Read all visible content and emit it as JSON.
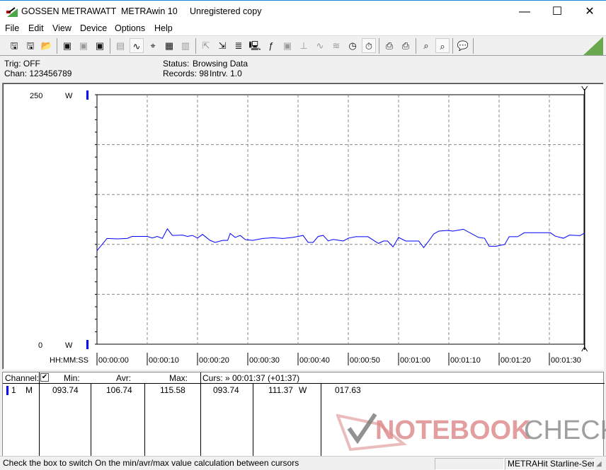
{
  "window": {
    "app_brand": "GOSSEN METRAWATT",
    "app_name": "METRAwin 10",
    "license": "Unregistered copy",
    "minimize": "—",
    "maximize": "☐",
    "close": "✕"
  },
  "menu": [
    "File",
    "Edit",
    "View",
    "Device",
    "Options",
    "Help"
  ],
  "toolbar": [
    {
      "icon": "save-icon",
      "glyph": "🖫"
    },
    {
      "icon": "save-as-icon",
      "glyph": "🖫"
    },
    {
      "icon": "open-folder-icon",
      "glyph": "📂"
    },
    {
      "sep": true
    },
    {
      "icon": "device-read-icon",
      "glyph": "▣"
    },
    {
      "icon": "device-transfer-icon",
      "glyph": "▣",
      "disabled": true
    },
    {
      "icon": "device-memory-icon",
      "glyph": "▣"
    },
    {
      "sep": true
    },
    {
      "icon": "digital-display-icon",
      "glyph": "▤",
      "disabled": true
    },
    {
      "icon": "waveform-view-icon",
      "glyph": "∿",
      "active": true
    },
    {
      "icon": "crosshair-icon",
      "glyph": "⌖"
    },
    {
      "icon": "table-view-icon",
      "glyph": "▦"
    },
    {
      "icon": "bar-view-icon",
      "glyph": "▥",
      "disabled": true
    },
    {
      "sep": true
    },
    {
      "icon": "export-icon",
      "glyph": "⇱",
      "disabled": true
    },
    {
      "icon": "import-icon",
      "glyph": "⇲"
    },
    {
      "icon": "data-list-icon",
      "glyph": "≣"
    },
    {
      "icon": "monitor-icon",
      "glyph": "🖳"
    },
    {
      "icon": "function-icon",
      "glyph": "ƒ"
    },
    {
      "icon": "device-config-icon",
      "glyph": "▣",
      "disabled": true
    },
    {
      "icon": "trigger-icon",
      "glyph": "⊥",
      "disabled": true
    },
    {
      "icon": "signal-icon",
      "glyph": "∿",
      "disabled": true
    },
    {
      "icon": "noise-icon",
      "glyph": "≋",
      "disabled": true
    },
    {
      "icon": "clock-icon",
      "glyph": "◷"
    },
    {
      "icon": "timer-icon",
      "glyph": "⏱",
      "active": true
    },
    {
      "sep": true
    },
    {
      "icon": "print-preview-icon",
      "glyph": "⎙"
    },
    {
      "icon": "print-icon",
      "glyph": "⎙"
    },
    {
      "sep": true
    },
    {
      "icon": "zoom-signal-icon",
      "glyph": "⌕"
    },
    {
      "icon": "zoom-wave-icon",
      "glyph": "⌕",
      "active": true
    },
    {
      "sep": true
    },
    {
      "icon": "comment-icon",
      "glyph": "💬"
    },
    {
      "sep": true
    }
  ],
  "info": {
    "trig": "Trig: OFF",
    "chan": "Chan:  123456789",
    "status_label": "Status:",
    "status_value": "Browsing Data",
    "records": "Records: 98",
    "interval": "Intrv. 1.0"
  },
  "chart_data": {
    "type": "line",
    "ylim": [
      0,
      250
    ],
    "y_unit": "W",
    "y_top_label": "250",
    "y_bottom_label": "0",
    "xlabel": "HH:MM:SS",
    "xlim": [
      0,
      97
    ],
    "x_ticks": [
      "00:00:00",
      "00:00:10",
      "00:00:20",
      "00:00:30",
      "00:00:40",
      "00:00:50",
      "00:01:00",
      "00:01:10",
      "00:01:20",
      "00:01:30"
    ],
    "grid": true,
    "line_color": "#0000ff",
    "series": [
      {
        "x": [
          0,
          2,
          4,
          6,
          7,
          10,
          11,
          12,
          13,
          14,
          15,
          17,
          18,
          19,
          20,
          21,
          22.5,
          23.5,
          25,
          26,
          26.5,
          27.5,
          28.5,
          29.5,
          31,
          33,
          35,
          37,
          39,
          40,
          41,
          42,
          43,
          44,
          45,
          46,
          47,
          49,
          50,
          51.5,
          53.9,
          56,
          57,
          57.8,
          58.9,
          60,
          61.4,
          64,
          65,
          66,
          67,
          68,
          69.8,
          70.8,
          72.9,
          75.9,
          77.1,
          78,
          79.4,
          81.1,
          82,
          83.7,
          85,
          90.2,
          91.2,
          92.8,
          94,
          96.1,
          97
        ],
        "y": [
          93.74,
          106,
          105.5,
          106,
          108,
          108,
          106.4,
          108,
          106,
          115.58,
          109,
          109.3,
          108,
          109,
          106.4,
          110,
          104,
          102,
          104,
          104,
          111,
          107,
          109,
          104.8,
          104,
          106,
          106.7,
          106,
          107,
          108,
          109,
          102,
          102,
          108,
          109,
          103.5,
          105,
          103.4,
          106.2,
          107.7,
          107.7,
          101,
          103.4,
          103.4,
          97.5,
          107,
          103.4,
          103.4,
          96.8,
          103.4,
          110.5,
          113.3,
          114,
          113.3,
          115.2,
          107,
          106.2,
          98.2,
          98.2,
          99.9,
          107.7,
          107.7,
          111.7,
          111.7,
          108.2,
          106.2,
          109.3,
          108.8,
          111.37
        ]
      }
    ]
  },
  "table": {
    "headers": {
      "channel": "Channel:",
      "min": "Min:",
      "avr": "Avr:",
      "max": "Max:",
      "cursor": "Curs: » 00:01:37 (+01:37)"
    },
    "checkbox_checked": true,
    "row": {
      "channel": "1",
      "mode": "M",
      "min": "093.74",
      "avr": "106.74",
      "max": "115.58",
      "cursor_min": "093.74",
      "cursor_value": "111.37",
      "unit": "W",
      "delta": "017.63"
    },
    "channel_color": "#0000ff"
  },
  "watermark": {
    "text_red": "NOTEBOOK",
    "text_gray": "CHECK"
  },
  "statusbar": {
    "hint": "Check the box to switch On the min/avr/max value calculation between cursors",
    "device": "METRAHit Starline-Seri"
  }
}
